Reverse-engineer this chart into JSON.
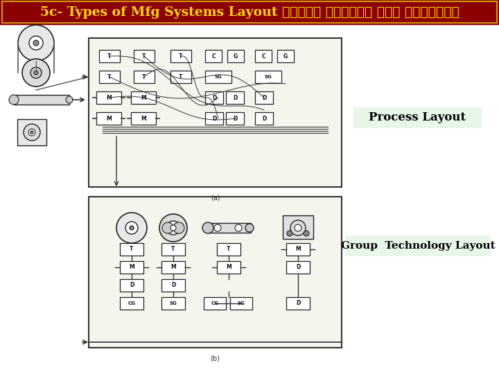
{
  "title_text": "5c- Types of Mfg Systems Layout أنواع مخططات نظم التصنيع",
  "title_bg": "#8B0000",
  "title_text_color": "#FFD700",
  "bg_color": "#FFFFFF",
  "label1": "Process Layout",
  "label2": "Group  Technology Layout",
  "label_bg": "#E8F5E9",
  "label_text_color": "#000000"
}
